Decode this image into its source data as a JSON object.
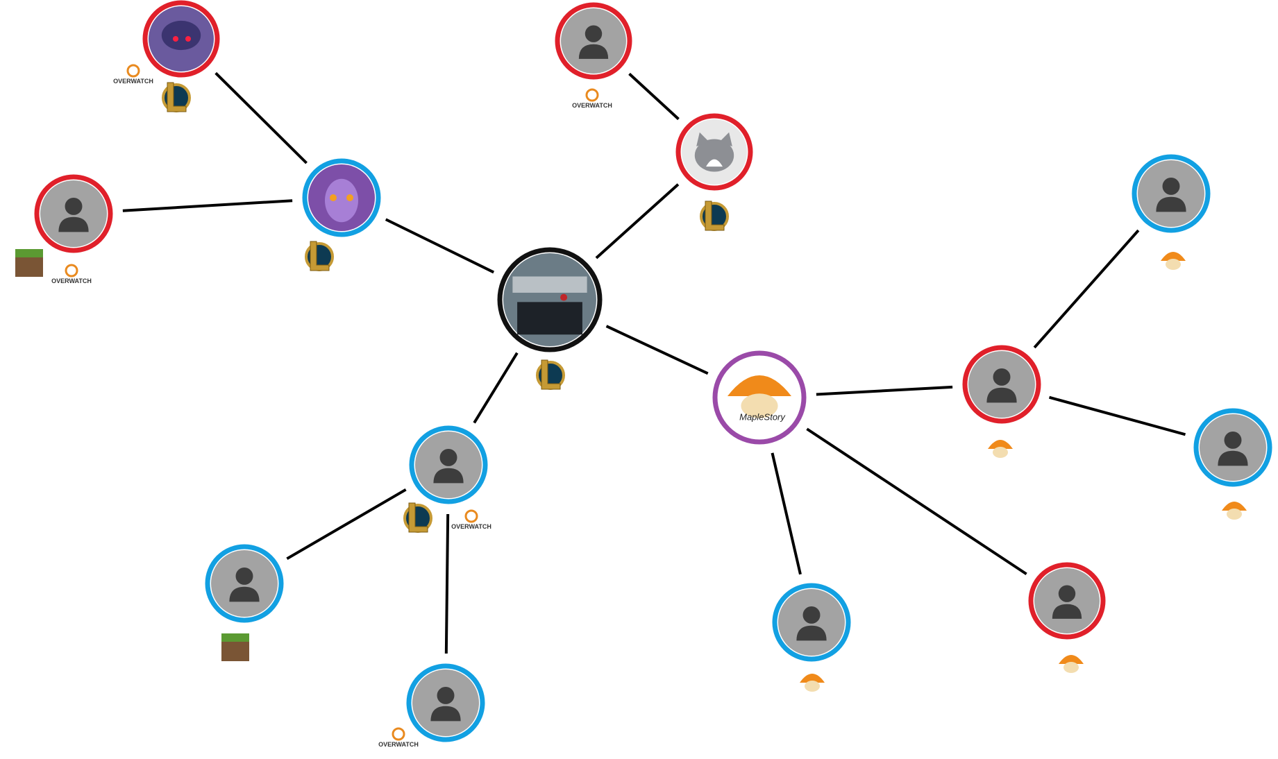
{
  "overwatch_badges": [
    "OVERWATCH",
    "OVERWATCH",
    "OVERWATCH",
    "OVERWATCH",
    "OVERWATCH"
  ],
  "maple_avatar": {
    "label": "MapleStory"
  }
}
